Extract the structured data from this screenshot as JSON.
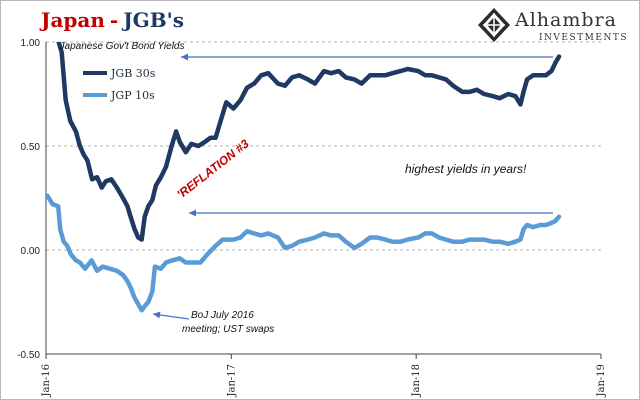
{
  "header": {
    "title_country": "Japan",
    "title_separator": "-",
    "title_subject": "JGB's"
  },
  "logo": {
    "name": "Alhambra",
    "tagline": "INVESTMENTS",
    "icon": "diamond-lattice-icon"
  },
  "colors": {
    "jgb30": "#1f3864",
    "jgb10": "#5b9bd5",
    "title_red": "#c00000",
    "grid": "#9a9a9a"
  },
  "chart_data": {
    "type": "line",
    "title": "Japanese Gov't Bond Yields",
    "ylim": [
      -0.5,
      1.0
    ],
    "y_ticks": [
      "1.00",
      "0.50",
      "0.00",
      "-0.50"
    ],
    "y_tick_values": [
      1.0,
      0.5,
      0.0,
      -0.5
    ],
    "x_range": [
      "2016-01-01",
      "2019-01-01"
    ],
    "x_ticks": [
      "Jan-16",
      "Jan-17",
      "Jan-18",
      "Jan-19"
    ],
    "x_tick_dates": [
      "2016-01-01",
      "2017-01-01",
      "2018-01-01",
      "2019-01-01"
    ],
    "grid": "horizontal dashed",
    "legend_position": "top-left",
    "series": [
      {
        "name": "JGB 30s",
        "color": "#1f3864",
        "points": [
          [
            "2016-01-04",
            1.2
          ],
          [
            "2016-01-20",
            1.05
          ],
          [
            "2016-02-01",
            0.95
          ],
          [
            "2016-02-09",
            0.72
          ],
          [
            "2016-02-18",
            0.62
          ],
          [
            "2016-02-29",
            0.57
          ],
          [
            "2016-03-08",
            0.5
          ],
          [
            "2016-03-15",
            0.46
          ],
          [
            "2016-03-23",
            0.43
          ],
          [
            "2016-04-01",
            0.34
          ],
          [
            "2016-04-11",
            0.35
          ],
          [
            "2016-04-20",
            0.3
          ],
          [
            "2016-04-28",
            0.33
          ],
          [
            "2016-05-09",
            0.34
          ],
          [
            "2016-05-20",
            0.3
          ],
          [
            "2016-06-01",
            0.25
          ],
          [
            "2016-06-10",
            0.21
          ],
          [
            "2016-06-16",
            0.16
          ],
          [
            "2016-06-24",
            0.1
          ],
          [
            "2016-07-01",
            0.06
          ],
          [
            "2016-07-08",
            0.05
          ],
          [
            "2016-07-14",
            0.16
          ],
          [
            "2016-07-21",
            0.21
          ],
          [
            "2016-07-29",
            0.24
          ],
          [
            "2016-08-05",
            0.31
          ],
          [
            "2016-08-15",
            0.35
          ],
          [
            "2016-08-25",
            0.4
          ],
          [
            "2016-09-05",
            0.5
          ],
          [
            "2016-09-14",
            0.57
          ],
          [
            "2016-09-21",
            0.52
          ],
          [
            "2016-10-03",
            0.47
          ],
          [
            "2016-10-14",
            0.51
          ],
          [
            "2016-10-28",
            0.5
          ],
          [
            "2016-11-10",
            0.52
          ],
          [
            "2016-11-21",
            0.54
          ],
          [
            "2016-12-01",
            0.54
          ],
          [
            "2016-12-12",
            0.63
          ],
          [
            "2016-12-22",
            0.71
          ],
          [
            "2017-01-05",
            0.68
          ],
          [
            "2017-01-19",
            0.72
          ],
          [
            "2017-02-01",
            0.78
          ],
          [
            "2017-02-15",
            0.8
          ],
          [
            "2017-03-01",
            0.84
          ],
          [
            "2017-03-15",
            0.85
          ],
          [
            "2017-04-03",
            0.8
          ],
          [
            "2017-04-17",
            0.79
          ],
          [
            "2017-05-01",
            0.83
          ],
          [
            "2017-05-15",
            0.84
          ],
          [
            "2017-06-01",
            0.82
          ],
          [
            "2017-06-15",
            0.8
          ],
          [
            "2017-07-03",
            0.86
          ],
          [
            "2017-07-17",
            0.85
          ],
          [
            "2017-08-01",
            0.86
          ],
          [
            "2017-08-15",
            0.83
          ],
          [
            "2017-09-01",
            0.82
          ],
          [
            "2017-09-15",
            0.8
          ],
          [
            "2017-10-02",
            0.84
          ],
          [
            "2017-10-16",
            0.84
          ],
          [
            "2017-11-01",
            0.84
          ],
          [
            "2017-11-15",
            0.85
          ],
          [
            "2017-12-01",
            0.86
          ],
          [
            "2017-12-15",
            0.87
          ],
          [
            "2018-01-05",
            0.86
          ],
          [
            "2018-01-19",
            0.84
          ],
          [
            "2018-02-01",
            0.84
          ],
          [
            "2018-02-15",
            0.83
          ],
          [
            "2018-03-01",
            0.82
          ],
          [
            "2018-03-15",
            0.79
          ],
          [
            "2018-04-02",
            0.76
          ],
          [
            "2018-04-16",
            0.76
          ],
          [
            "2018-05-01",
            0.77
          ],
          [
            "2018-05-15",
            0.75
          ],
          [
            "2018-06-01",
            0.74
          ],
          [
            "2018-06-15",
            0.73
          ],
          [
            "2018-07-02",
            0.75
          ],
          [
            "2018-07-16",
            0.74
          ],
          [
            "2018-07-26",
            0.7
          ],
          [
            "2018-08-01",
            0.76
          ],
          [
            "2018-08-08",
            0.82
          ],
          [
            "2018-08-20",
            0.84
          ],
          [
            "2018-09-03",
            0.84
          ],
          [
            "2018-09-14",
            0.84
          ],
          [
            "2018-09-25",
            0.86
          ],
          [
            "2018-10-03",
            0.9
          ],
          [
            "2018-10-10",
            0.93
          ]
        ]
      },
      {
        "name": "JGP 10s",
        "color": "#5b9bd5",
        "points": [
          [
            "2016-01-04",
            0.26
          ],
          [
            "2016-01-14",
            0.22
          ],
          [
            "2016-01-25",
            0.21
          ],
          [
            "2016-01-29",
            0.1
          ],
          [
            "2016-02-05",
            0.04
          ],
          [
            "2016-02-12",
            0.02
          ],
          [
            "2016-02-19",
            -0.02
          ],
          [
            "2016-02-29",
            -0.05
          ],
          [
            "2016-03-08",
            -0.06
          ],
          [
            "2016-03-18",
            -0.09
          ],
          [
            "2016-03-31",
            -0.05
          ],
          [
            "2016-04-11",
            -0.1
          ],
          [
            "2016-04-22",
            -0.08
          ],
          [
            "2016-05-06",
            -0.09
          ],
          [
            "2016-05-20",
            -0.1
          ],
          [
            "2016-06-01",
            -0.12
          ],
          [
            "2016-06-10",
            -0.15
          ],
          [
            "2016-06-16",
            -0.18
          ],
          [
            "2016-06-24",
            -0.23
          ],
          [
            "2016-07-01",
            -0.26
          ],
          [
            "2016-07-08",
            -0.29
          ],
          [
            "2016-07-14",
            -0.27
          ],
          [
            "2016-07-21",
            -0.25
          ],
          [
            "2016-07-29",
            -0.2
          ],
          [
            "2016-08-03",
            -0.08
          ],
          [
            "2016-08-15",
            -0.09
          ],
          [
            "2016-08-25",
            -0.06
          ],
          [
            "2016-09-06",
            -0.05
          ],
          [
            "2016-09-21",
            -0.04
          ],
          [
            "2016-10-03",
            -0.06
          ],
          [
            "2016-10-17",
            -0.06
          ],
          [
            "2016-11-01",
            -0.06
          ],
          [
            "2016-11-15",
            -0.02
          ],
          [
            "2016-12-01",
            0.02
          ],
          [
            "2016-12-15",
            0.05
          ],
          [
            "2017-01-05",
            0.05
          ],
          [
            "2017-01-19",
            0.06
          ],
          [
            "2017-02-01",
            0.09
          ],
          [
            "2017-02-15",
            0.08
          ],
          [
            "2017-03-01",
            0.07
          ],
          [
            "2017-03-15",
            0.08
          ],
          [
            "2017-04-03",
            0.06
          ],
          [
            "2017-04-17",
            0.01
          ],
          [
            "2017-05-01",
            0.02
          ],
          [
            "2017-05-15",
            0.04
          ],
          [
            "2017-06-01",
            0.05
          ],
          [
            "2017-06-15",
            0.06
          ],
          [
            "2017-07-03",
            0.08
          ],
          [
            "2017-07-17",
            0.07
          ],
          [
            "2017-08-01",
            0.07
          ],
          [
            "2017-08-15",
            0.04
          ],
          [
            "2017-09-01",
            0.01
          ],
          [
            "2017-09-15",
            0.03
          ],
          [
            "2017-10-02",
            0.06
          ],
          [
            "2017-10-16",
            0.06
          ],
          [
            "2017-11-01",
            0.05
          ],
          [
            "2017-11-15",
            0.04
          ],
          [
            "2017-12-01",
            0.04
          ],
          [
            "2017-12-15",
            0.05
          ],
          [
            "2018-01-05",
            0.06
          ],
          [
            "2018-01-19",
            0.08
          ],
          [
            "2018-02-01",
            0.08
          ],
          [
            "2018-02-15",
            0.06
          ],
          [
            "2018-03-01",
            0.05
          ],
          [
            "2018-03-15",
            0.04
          ],
          [
            "2018-04-02",
            0.04
          ],
          [
            "2018-04-16",
            0.05
          ],
          [
            "2018-05-01",
            0.05
          ],
          [
            "2018-05-15",
            0.05
          ],
          [
            "2018-06-01",
            0.04
          ],
          [
            "2018-06-15",
            0.04
          ],
          [
            "2018-07-02",
            0.03
          ],
          [
            "2018-07-16",
            0.04
          ],
          [
            "2018-07-26",
            0.05
          ],
          [
            "2018-08-01",
            0.1
          ],
          [
            "2018-08-08",
            0.12
          ],
          [
            "2018-08-20",
            0.11
          ],
          [
            "2018-09-03",
            0.12
          ],
          [
            "2018-09-14",
            0.12
          ],
          [
            "2018-09-25",
            0.13
          ],
          [
            "2018-10-03",
            0.14
          ],
          [
            "2018-10-10",
            0.16
          ]
        ]
      }
    ],
    "annotations": [
      {
        "id": "reflation",
        "text": "'REFLATION #3",
        "color": "#c00000"
      },
      {
        "id": "highest",
        "text": "highest yields in years!"
      },
      {
        "id": "boj",
        "lines": [
          "BoJ July 2016",
          "meeting; UST swaps"
        ]
      }
    ]
  }
}
